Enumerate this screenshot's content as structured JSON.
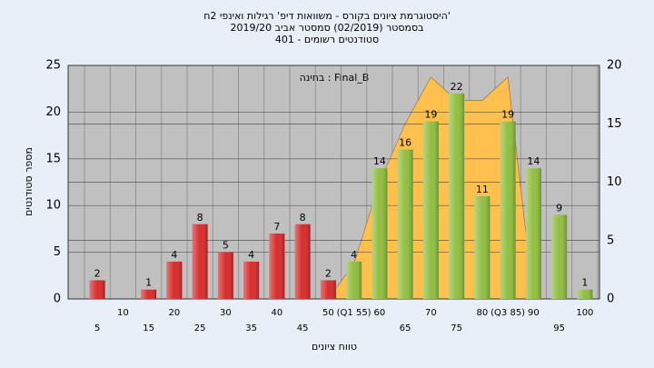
{
  "chart_data": {
    "type": "bar",
    "title_lines": [
      "'היסטוגרמת ציונים בקורס - משוואות דיפ' רגילות ואינפי 2ח",
      "בסמסטר  (02/2019)  סמסטר אביב 2019/20",
      "סטודנטים רשומים - 401"
    ],
    "annotation": "בחינה : Final_B",
    "x_label": "טווח ציונים",
    "y_label": "מספר סטודנטים",
    "categories": [
      "5",
      "10",
      "15",
      "20",
      "25",
      "30",
      "35",
      "40",
      "45",
      "50",
      "(Q1 55)",
      "60",
      "65",
      "70",
      "75",
      "80",
      "(Q3 85)",
      "90",
      "95",
      "100"
    ],
    "values": [
      2,
      0,
      1,
      4,
      8,
      5,
      4,
      7,
      8,
      2,
      4,
      14,
      16,
      19,
      22,
      11,
      19,
      14,
      9,
      1
    ],
    "colors": [
      "#d92b2b",
      "#d92b2b",
      "#d92b2b",
      "#d92b2b",
      "#d92b2b",
      "#d92b2b",
      "#d92b2b",
      "#d92b2b",
      "#d92b2b",
      "#d92b2b",
      "#8fbf3f",
      "#8fbf3f",
      "#8fbf3f",
      "#8fbf3f",
      "#8fbf3f",
      "#8fbf3f",
      "#8fbf3f",
      "#8fbf3f",
      "#8fbf3f",
      "#8fbf3f"
    ],
    "area": {
      "axis": "y2",
      "color": "#ffc04d",
      "values": [
        null,
        null,
        null,
        null,
        null,
        null,
        null,
        null,
        null,
        0,
        3,
        10,
        15,
        19,
        17,
        17,
        19,
        0,
        null,
        null
      ]
    },
    "ylim": [
      0,
      25
    ],
    "yticks": [
      0,
      5,
      10,
      15,
      20,
      25
    ],
    "y2lim": [
      0,
      20
    ],
    "y2ticks": [
      0,
      5,
      10,
      15,
      20
    ],
    "grid": true
  }
}
